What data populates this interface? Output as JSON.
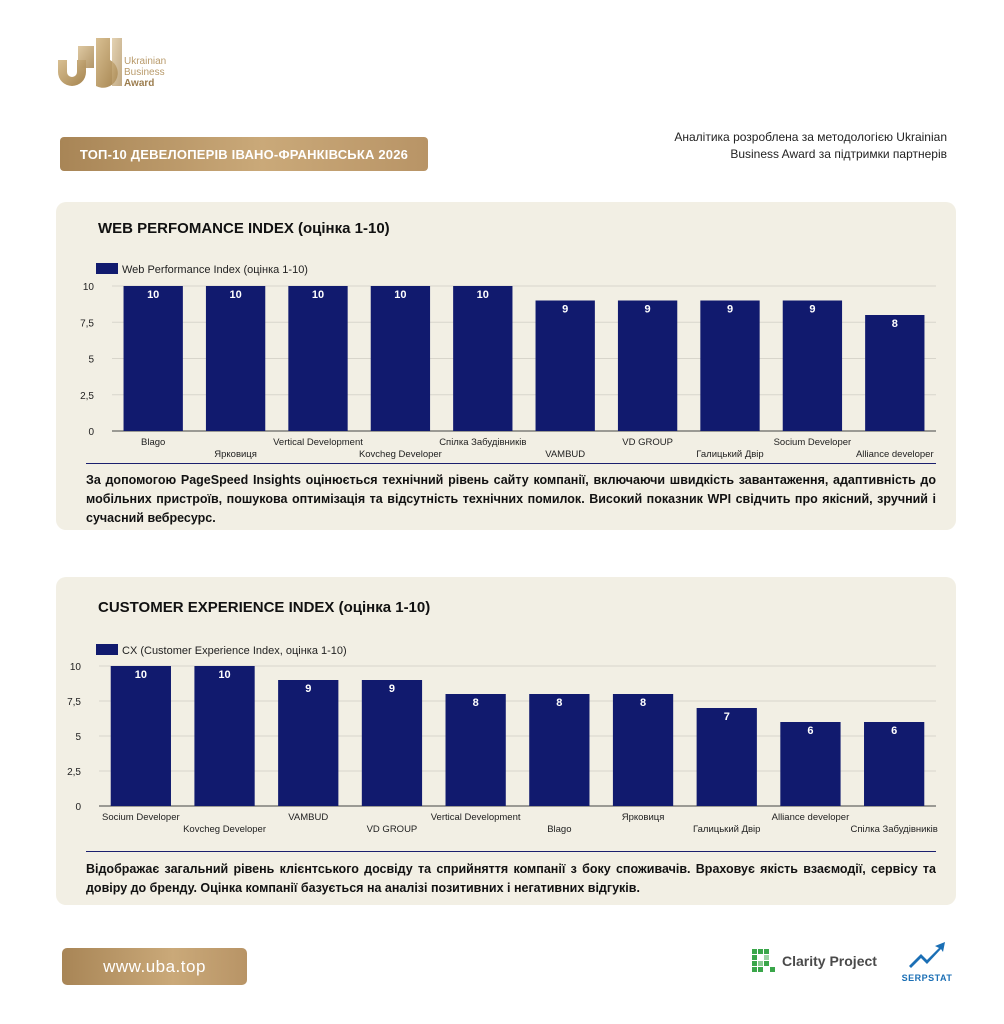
{
  "brand": {
    "line1": "Ukrainian",
    "line2": "Business",
    "line3": "Award"
  },
  "header": {
    "title": "ТОП-10 ДЕВЕЛОПЕРІВ ІВАНО-ФРАНКІВСЬКА 2026",
    "note_line1": "Аналітика розроблена за методологією Ukrainian",
    "note_line2": "Business Award за підтримки партнерів"
  },
  "footer": {
    "site": "www.uba.top",
    "partner1": "Clarity Project",
    "partner2": "SERPSTAT"
  },
  "colors": {
    "bar": "#111a6e",
    "gold": "#b89a6a",
    "panel": "#f2efe4"
  },
  "chart_data": [
    {
      "type": "bar",
      "title": "WEB PERFOMANCE INDEX (оцінка 1-10)",
      "legend": "Web Performance Index (оцінка 1-10)",
      "categories": [
        "Blago",
        "Ярковиця",
        "Vertical Development",
        "Kovcheg Developer",
        "Спілка Забудівників",
        "VAMBUD",
        "VD GROUP",
        "Галицький Двір",
        "Socium Developer",
        "Alliance developer"
      ],
      "values": [
        10,
        10,
        10,
        10,
        10,
        9,
        9,
        9,
        9,
        8
      ],
      "yticks": [
        "0",
        "2,5",
        "5",
        "7,5",
        "10"
      ],
      "ylim": [
        0,
        10
      ],
      "description": "За допомогою PageSpeed Insights оцінюється технічний рівень сайту компанії, включаючи швидкість завантаження, адаптивність до мобільних пристроїв, пошукова оптимізація та відсутність технічних помилок. Високий показник WPI свідчить про якісний, зручний і сучасний вебресурс."
    },
    {
      "type": "bar",
      "title": "CUSTOMER EXPERIENCE INDEX (оцінка 1-10)",
      "legend": "CX (Customer Experience Index, оцінка 1-10)",
      "categories": [
        "Socium Developer",
        "Kovcheg Developer",
        "VAMBUD",
        "VD GROUP",
        "Vertical Development",
        "Blago",
        "Ярковиця",
        "Галицький Двір",
        "Alliance developer",
        "Спілка Забудівників"
      ],
      "values": [
        10,
        10,
        9,
        9,
        8,
        8,
        8,
        7,
        6,
        6
      ],
      "yticks": [
        "0",
        "2,5",
        "5",
        "7,5",
        "10"
      ],
      "ylim": [
        0,
        10
      ],
      "description": "Відображає загальний рівень клієнтського досвіду та сприйняття компанії з боку споживачів. Враховує якість взаємодії, сервісу та довіру до бренду. Оцінка компанії базується на аналізі позитивних і негативних відгуків."
    }
  ]
}
